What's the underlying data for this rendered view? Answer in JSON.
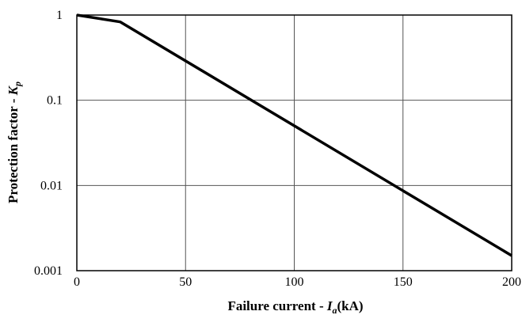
{
  "chart_data": {
    "type": "line",
    "title": "",
    "xlabel": {
      "prefix": "Failure current - ",
      "symbol": "I",
      "subscript": "a",
      "unit": "(kA)"
    },
    "ylabel": {
      "prefix": "Protection factor - ",
      "symbol": "K",
      "subscript": "p"
    },
    "xlim": [
      0,
      200
    ],
    "ylim": [
      0.001,
      1
    ],
    "yscale": "log",
    "grid": true,
    "x_ticks": [
      0,
      50,
      100,
      150,
      200
    ],
    "x_tick_labels": [
      "0",
      "50",
      "100",
      "150",
      "200"
    ],
    "y_ticks": [
      0.001,
      0.01,
      0.1,
      1
    ],
    "y_tick_labels": [
      "0.001",
      "0.01",
      "0.1",
      "1"
    ],
    "series": [
      {
        "color": "#000000",
        "x": [
          0,
          20,
          200
        ],
        "y": [
          1.0,
          0.83,
          0.0015
        ]
      }
    ]
  }
}
